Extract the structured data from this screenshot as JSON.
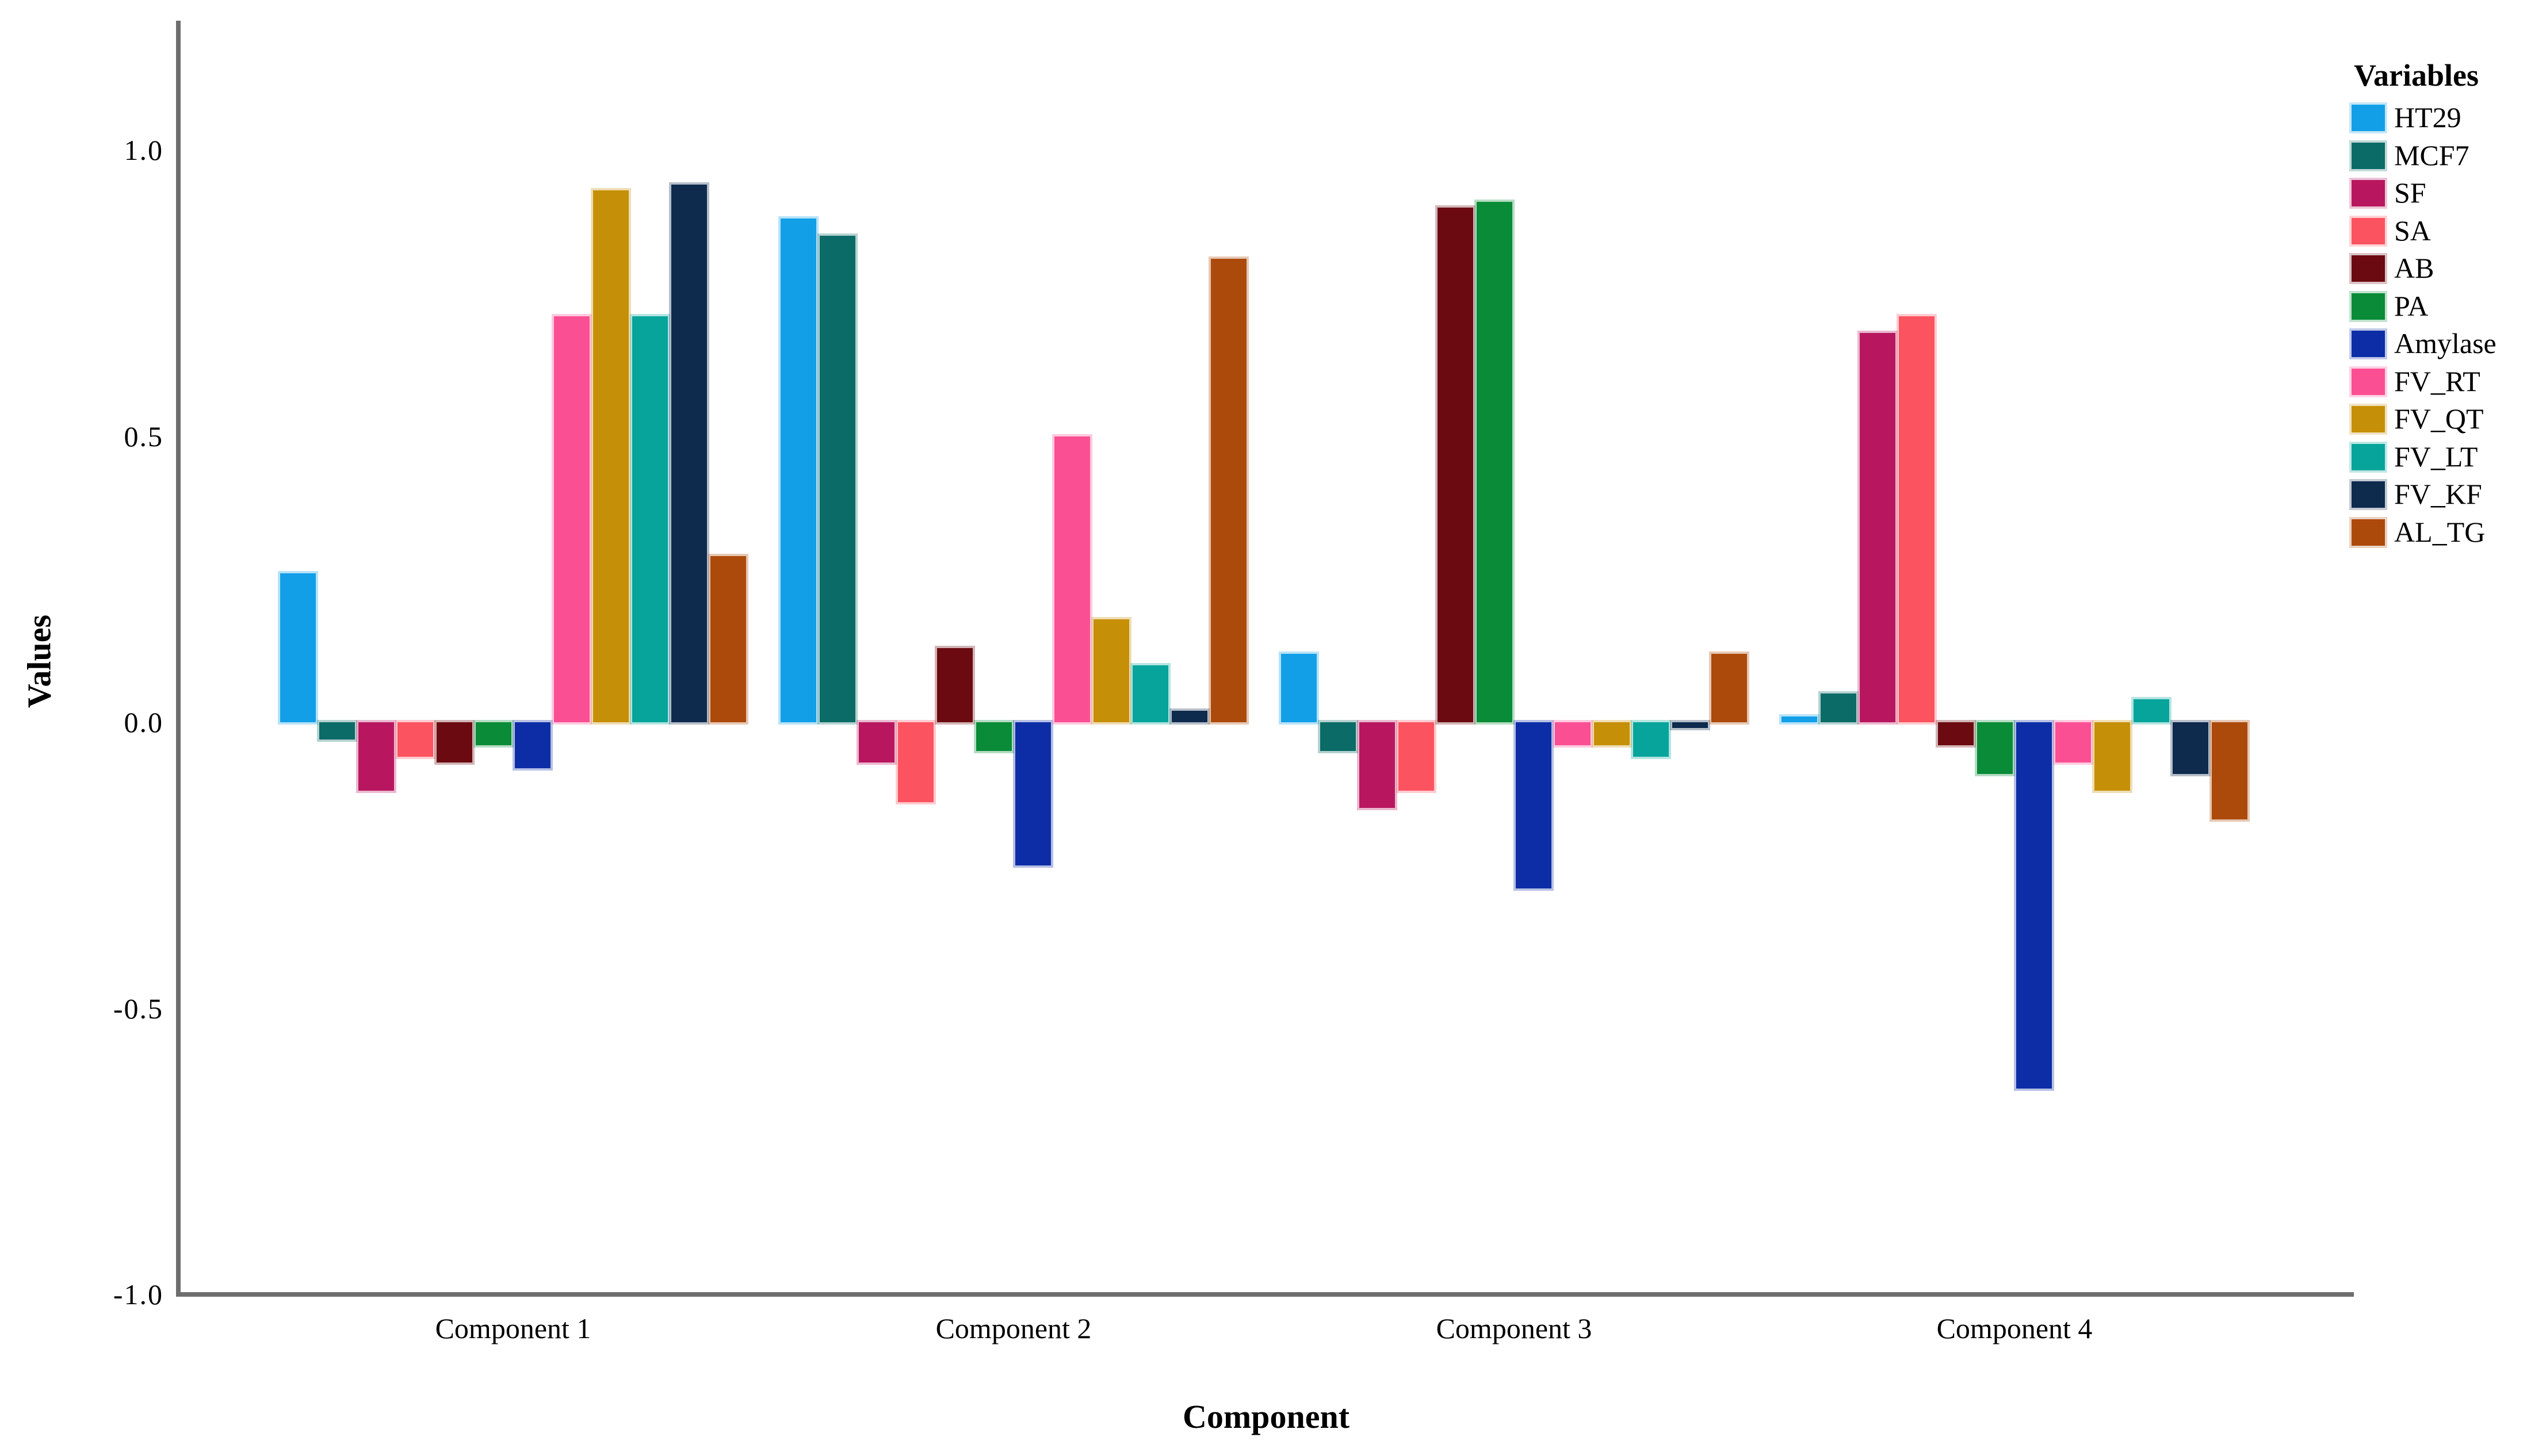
{
  "figure": {
    "ylabel": "Values",
    "xlabel": "Component",
    "legend_title": "Variables",
    "background": "#FFFFFF",
    "axis_color": "#6E6E6E",
    "text_color": "#000000"
  },
  "chart_data": {
    "type": "bar",
    "title": "",
    "xlabel": "Component",
    "ylabel": "Values",
    "legend_title": "Variables",
    "legend_position": "right",
    "grid": false,
    "ylim": [
      -1.0,
      1.22
    ],
    "yticks": [
      {
        "label": "1.0",
        "value": 1.0
      },
      {
        "label": "0.5",
        "value": 0.5
      },
      {
        "label": "0.0",
        "value": 0.0
      },
      {
        "label": "-0.5",
        "value": -0.5
      },
      {
        "label": "-1.0",
        "value": -1.0
      }
    ],
    "categories": [
      "Component 1",
      "Component 2",
      "Component 3",
      "Component 4"
    ],
    "series": [
      {
        "name": "HT29",
        "color": "#129FE8",
        "values": [
          0.26,
          0.88,
          0.12,
          0.01
        ]
      },
      {
        "name": "MCF7",
        "color": "#0B6B66",
        "values": [
          -0.03,
          0.85,
          -0.05,
          0.05
        ]
      },
      {
        "name": "SF",
        "color": "#B8175F",
        "values": [
          -0.12,
          -0.07,
          -0.15,
          0.68
        ]
      },
      {
        "name": "SA",
        "color": "#FC5360",
        "values": [
          -0.06,
          -0.14,
          -0.12,
          0.71
        ]
      },
      {
        "name": "AB",
        "color": "#6B0A10",
        "values": [
          -0.07,
          0.13,
          0.9,
          -0.04
        ]
      },
      {
        "name": "PA",
        "color": "#098B38",
        "values": [
          -0.04,
          -0.05,
          0.91,
          -0.09
        ]
      },
      {
        "name": "Amylase",
        "color": "#0C2DA6",
        "values": [
          -0.08,
          -0.25,
          -0.29,
          -0.64
        ]
      },
      {
        "name": "FV_RT",
        "color": "#FB4F93",
        "values": [
          0.71,
          0.5,
          -0.04,
          -0.07
        ]
      },
      {
        "name": "FV_QT",
        "color": "#C68F08",
        "values": [
          0.93,
          0.18,
          -0.04,
          -0.12
        ]
      },
      {
        "name": "FV_LT",
        "color": "#07A49B",
        "values": [
          0.71,
          0.1,
          -0.06,
          0.04
        ]
      },
      {
        "name": "FV_KF",
        "color": "#0E2A4D",
        "values": [
          0.94,
          0.02,
          -0.01,
          -0.09
        ]
      },
      {
        "name": "AL_TG",
        "color": "#AC4A0B",
        "values": [
          0.29,
          0.81,
          0.12,
          -0.17
        ]
      }
    ]
  }
}
